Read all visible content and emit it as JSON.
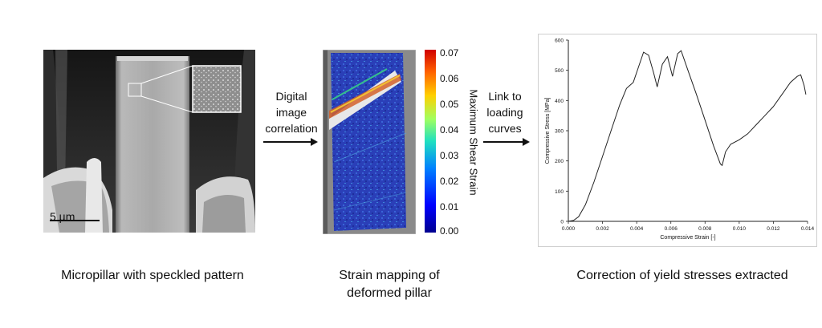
{
  "panel1": {
    "scale_bar_label": "5 µm",
    "caption": "Micropillar with speckled pattern"
  },
  "arrow1": {
    "lines": [
      "Digital",
      "image",
      "correlation"
    ]
  },
  "panel2": {
    "colorbar": {
      "title": "Maximum Shear Strain",
      "ticks": [
        "0.07",
        "0.06",
        "0.05",
        "0.04",
        "0.03",
        "0.02",
        "0.01",
        "0.00"
      ]
    },
    "caption_lines": [
      "Strain mapping of",
      "deformed pillar"
    ]
  },
  "arrow2": {
    "lines": [
      "Link to",
      "loading",
      "curves"
    ]
  },
  "panel3": {
    "caption": "Correction of yield stresses extracted"
  },
  "chart_data": {
    "type": "line",
    "xlabel": "Compressive Strain [-]",
    "ylabel": "Compressive Stress [MPa]",
    "xlim": [
      0,
      0.014
    ],
    "ylim": [
      0,
      600
    ],
    "xticks": [
      "0.000",
      "0.002",
      "0.004",
      "0.006",
      "0.008",
      "0.010",
      "0.012",
      "0.014"
    ],
    "yticks": [
      "0",
      "100",
      "200",
      "300",
      "400",
      "500",
      "600"
    ],
    "grid": false,
    "series": [
      {
        "color": "#222222",
        "x": [
          0.0,
          0.0003,
          0.0006,
          0.001,
          0.0015,
          0.002,
          0.0025,
          0.003,
          0.0034,
          0.0036,
          0.0038,
          0.0041,
          0.0044,
          0.0047,
          0.005,
          0.0052,
          0.0055,
          0.0058,
          0.0061,
          0.0064,
          0.0066,
          0.007,
          0.0075,
          0.008,
          0.0085,
          0.0089,
          0.009,
          0.0092,
          0.0095,
          0.01,
          0.0105,
          0.011,
          0.0115,
          0.012,
          0.0125,
          0.013,
          0.0134,
          0.0136,
          0.0138,
          0.0139
        ],
        "y": [
          0,
          3,
          15,
          55,
          130,
          215,
          300,
          385,
          440,
          450,
          460,
          510,
          560,
          550,
          490,
          445,
          520,
          545,
          480,
          555,
          565,
          500,
          420,
          335,
          250,
          190,
          185,
          230,
          255,
          270,
          290,
          320,
          350,
          380,
          420,
          460,
          480,
          485,
          450,
          420
        ]
      }
    ]
  }
}
